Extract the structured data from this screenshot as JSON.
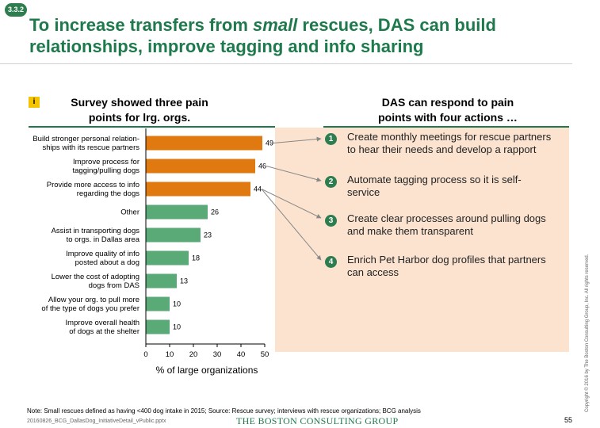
{
  "badge": "3.3.2",
  "title": {
    "line1_pre": "To increase transfers from ",
    "line1_em": "small",
    "line1_post": " rescues, DAS can build",
    "line2": "relationships, improve tagging and info sharing"
  },
  "info_icon": "i",
  "left_heading": {
    "line1": "Survey showed three pain",
    "line2": "points for lrg. orgs."
  },
  "right_heading": {
    "line1": "DAS can respond to pain",
    "line2": "points with four actions …"
  },
  "chart_data": {
    "type": "bar",
    "orientation": "horizontal",
    "categories": [
      [
        "Build stronger personal relation-",
        "ships with its rescue partners"
      ],
      [
        "Improve process for",
        "tagging/pulling dogs"
      ],
      [
        "Provide more access to info",
        "regarding the dogs"
      ],
      [
        "Other"
      ],
      [
        "Assist in transporting dogs",
        "to orgs. in Dallas area"
      ],
      [
        "Improve quality of info",
        "posted about a dog"
      ],
      [
        "Lower the cost of adopting",
        "dogs from DAS"
      ],
      [
        "Allow your org. to pull more",
        "of the type of dogs you prefer"
      ],
      [
        "Improve overall health",
        "of dogs at the shelter"
      ]
    ],
    "values": [
      49,
      46,
      44,
      26,
      23,
      18,
      13,
      10,
      10
    ],
    "highlight_count": 3,
    "xlim": [
      0,
      50
    ],
    "xticks": [
      0,
      10,
      20,
      30,
      40,
      50
    ],
    "xlabel": "% of large organizations",
    "colors": {
      "highlight": "#e07a10",
      "normal": "#5aaa78"
    }
  },
  "actions": [
    {
      "num": "1",
      "line1": "Create monthly meetings for rescue partners",
      "line2": "to hear their needs and develop a rapport"
    },
    {
      "num": "2",
      "line1": "Automate tagging process so it is self-",
      "line2": "service"
    },
    {
      "num": "3",
      "line1": "Create clear processes around pulling dogs",
      "line2": "and make them transparent"
    },
    {
      "num": "4",
      "line1": "Enrich Pet Harbor dog profiles that partners",
      "line2": "can access"
    }
  ],
  "footer": {
    "note": "Note: Small rescues defined as having <400 dog intake in 2015; Source: Rescue survey; interviews with rescue organizations; BCG analysis",
    "file": "20160826_BCG_DallasDog_InitiativeDetail_vPublic.pptx",
    "brand": "THE BOSTON CONSULTING GROUP",
    "page": "55",
    "copyright": "Copyright © 2016 by The Boston Consulting Group, Inc. All rights reserved."
  },
  "colors": {
    "accent": "#1e7a4c",
    "highlight_bg": "#fbe3d0",
    "badge": "#2e7d4f",
    "info": "#f5c400"
  }
}
